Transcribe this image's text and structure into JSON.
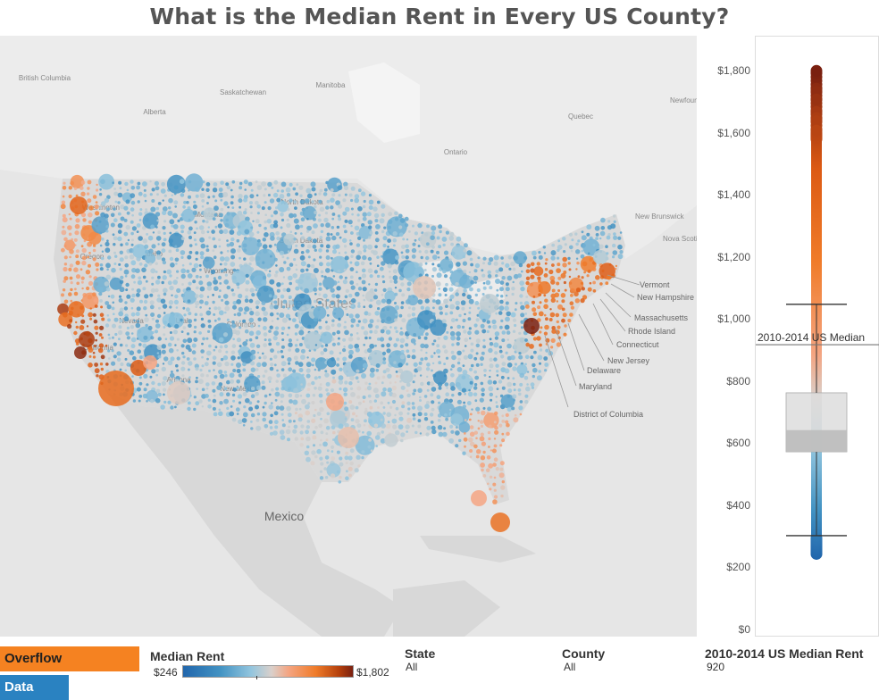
{
  "title": "What is the Median Rent in Every US County?",
  "map": {
    "labels": {
      "british_columbia": "British Columbia",
      "alberta": "Alberta",
      "saskatchewan": "Saskatchewan",
      "manitoba": "Manitoba",
      "ontario": "Ontario",
      "quebec": "Quebec",
      "newfoundland": "Newfoun Labra",
      "new_brunswick": "New Brunswick",
      "nova_scotia": "Nova Scotia",
      "mexico": "Mexico",
      "united_states": "United States",
      "washington": "Washington",
      "oregon": "Oregon",
      "montana": "Montana",
      "idaho": "Idaho",
      "wyoming": "Wyoming",
      "nevada": "Nevada",
      "utah": "Utah",
      "california": "California",
      "arizona": "Arizona",
      "new_mexico": "New Mexico",
      "colorado": "Colorado",
      "north_dakota": "North Dakota",
      "south_dakota": "South Dakota"
    },
    "callouts": [
      "Vermont",
      "New Hampshire",
      "Massachusetts",
      "Rhode Island",
      "Connecticut",
      "New Jersey",
      "Delaware",
      "Maryland",
      "District of Columbia"
    ]
  },
  "boxplot": {
    "median_label": "2010-2014 US Median",
    "median_value": 920,
    "min": 246,
    "max": 1802,
    "q1": 575,
    "median": 645,
    "q3": 765,
    "whisker_low": 305,
    "whisker_high": 1050,
    "ticks": [
      "$1,800",
      "$1,600",
      "$1,400",
      "$1,200",
      "$1,000",
      "$800",
      "$600",
      "$400",
      "$200",
      "$0"
    ],
    "tick_values": [
      1800,
      1600,
      1400,
      1200,
      1000,
      800,
      600,
      400,
      200,
      0
    ]
  },
  "legend": {
    "overflow": "Overflow",
    "data": "Data"
  },
  "filters": {
    "median_rent_title": "Median Rent",
    "median_rent_min": "$246",
    "median_rent_max": "$1,802",
    "state_title": "State",
    "state_value": "All",
    "county_title": "County",
    "county_value": "All",
    "us_median_title": "2010-2014 US Median Rent",
    "us_median_value": "920"
  },
  "colors": {
    "low": "#2166ac",
    "mid": "#d9d0cb",
    "high": "#f07c2a",
    "max": "#7a2010",
    "overflow": "#f58221",
    "data": "#2a82c1"
  }
}
